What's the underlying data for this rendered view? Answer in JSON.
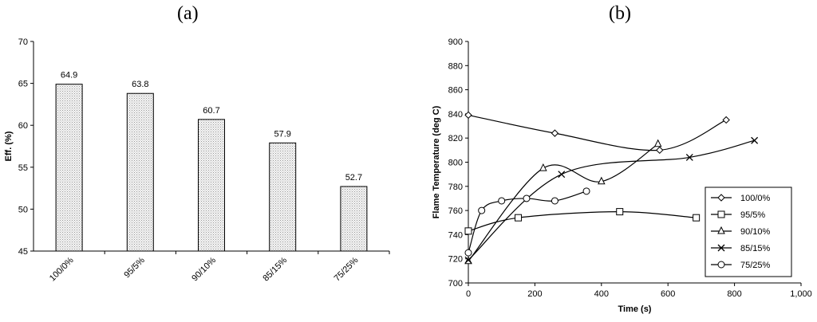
{
  "panels": {
    "a": "(a)",
    "b": "(b)"
  },
  "chart_data": [
    {
      "type": "bar",
      "categories": [
        "100/0%",
        "95/5%",
        "90/10%",
        "85/15%",
        "75/25%"
      ],
      "values": [
        64.9,
        63.8,
        60.7,
        57.9,
        52.7
      ],
      "data_labels": [
        "64.9",
        "63.8",
        "60.7",
        "57.9",
        "52.7"
      ],
      "ylabel": "Eff. (%)",
      "ylim": [
        45,
        70
      ],
      "yticks": [
        45,
        50,
        55,
        60,
        65,
        70
      ],
      "bar_fill": "#ececec",
      "grid": false
    },
    {
      "type": "line",
      "xlabel": "Time (s)",
      "ylabel": "Flame Temperature (deg C)",
      "xlim": [
        0,
        1000
      ],
      "ylim": [
        700,
        900
      ],
      "xticks": [
        0,
        200,
        400,
        600,
        800,
        1000
      ],
      "xtick_labels": [
        "0",
        "200",
        "400",
        "600",
        "800",
        "1,000"
      ],
      "yticks": [
        700,
        720,
        740,
        760,
        780,
        800,
        820,
        840,
        860,
        880,
        900
      ],
      "legend": "bottom-right",
      "grid": false,
      "series": [
        {
          "name": "100/0%",
          "marker": "diamond",
          "x": [
            0,
            260,
            575,
            775
          ],
          "y": [
            839,
            824,
            810,
            835
          ]
        },
        {
          "name": "95/5%",
          "marker": "square",
          "x": [
            0,
            150,
            455,
            685
          ],
          "y": [
            743,
            754,
            759,
            754
          ]
        },
        {
          "name": "90/10%",
          "marker": "triangle",
          "x": [
            0,
            225,
            400,
            570
          ],
          "y": [
            718,
            795,
            784,
            815
          ]
        },
        {
          "name": "85/15%",
          "marker": "x",
          "x": [
            0,
            280,
            665,
            860
          ],
          "y": [
            719,
            790,
            804,
            818
          ]
        },
        {
          "name": "75/25%",
          "marker": "circle",
          "x": [
            0,
            40,
            100,
            175,
            260,
            355
          ],
          "y": [
            725,
            760,
            768,
            770,
            768,
            776
          ]
        }
      ]
    }
  ]
}
